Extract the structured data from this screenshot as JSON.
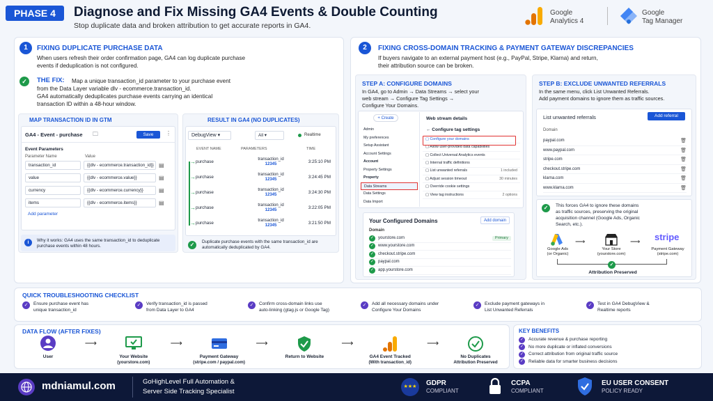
{
  "header": {
    "phase": "PHASE 4",
    "title": "Diagnose and Fix Missing GA4 Events & Double Counting",
    "subtitle": "Stop duplicate data and broken attribution to get accurate reports in GA4.",
    "ga_line1": "Google",
    "ga_line2": "Analytics 4",
    "gtm_line1": "Google",
    "gtm_line2": "Tag Manager"
  },
  "s1": {
    "num": "1",
    "title": "FIXING DUPLICATE PURCHASE DATA",
    "intro": "When users refresh their order confirmation page, GA4 can log duplicate purchase events if deduplication is not configured.",
    "fix_label": "THE FIX:",
    "fix_line1": "Map a unique transaction_id parameter to your purchase event",
    "fix_line2": "from the Data Layer variable dlv - ecommerce.transaction_id.",
    "fix_line3": "GA4 automatically deduplicates purchase events carrying an identical",
    "fix_line4": "transaction ID within a 48-hour window.",
    "gtm": {
      "heading": "MAP TRANSACTION ID IN GTM",
      "tag": "GA4 - Event - purchase",
      "save": "Save",
      "params_title": "Event Parameters",
      "col_name": "Parameter Name",
      "col_value": "Value",
      "rows": [
        {
          "name": "transaction_id",
          "value": "{{dlv - ecommerce.transaction_id}}"
        },
        {
          "name": "value",
          "value": "{{dlv - ecommerce.value}}"
        },
        {
          "name": "currency",
          "value": "{{dlv - ecommerce.currency}}"
        },
        {
          "name": "items",
          "value": "{{dlv - ecommerce.items}}"
        }
      ],
      "add": "Add parameter"
    },
    "why": "Why it works: GA4 uses the same transaction_id to deduplicate purchase events within 48 hours.",
    "result": {
      "heading": "RESULT IN GA4 (NO DUPLICATES)",
      "debug": "DebugView",
      "all": "All",
      "realtime": "Realtime",
      "col_event": "EVENT NAME",
      "col_params": "PARAMETERS",
      "col_time": "TIME",
      "rows": [
        {
          "event": "purchase",
          "param": "transaction_id",
          "val": "12345",
          "time": "3:25:10 PM"
        },
        {
          "event": "purchase",
          "param": "transaction_id",
          "val": "12345",
          "time": "3:24:45 PM"
        },
        {
          "event": "purchase",
          "param": "transaction_id",
          "val": "12345",
          "time": "3:24:30 PM"
        },
        {
          "event": "purchase",
          "param": "transaction_id",
          "val": "12345",
          "time": "3:22:05 PM"
        },
        {
          "event": "purchase",
          "param": "transaction_id",
          "val": "12345",
          "time": "3:21:50 PM"
        }
      ],
      "note": "Duplicate purchase events with the same transaction_id are automatically deduplicated by GA4."
    }
  },
  "s2": {
    "num": "2",
    "title": "FIXING CROSS-DOMAIN TRACKING & PAYMENT GATEWAY DISCREPANCIES",
    "intro1": "If buyers navigate to an external payment host (e.g., PayPal, Stripe, Klarna) and return,",
    "intro2": "their attribution source can be broken.",
    "stepA": {
      "title": "STEP A: CONFIGURE DOMAINS",
      "l1": "In GA4, go to Admin → Data Streams → select your",
      "l2": "web stream → Configure Tag Settings →",
      "l3": "Configure Your Domains.",
      "create": "+ Create",
      "nav": [
        "Admin",
        "My preferences",
        "Setup Assistant",
        "Account Settings",
        "Account",
        "Property Settings",
        "Property",
        "Data Streams",
        "Data Settings",
        "Data Import"
      ],
      "wsd": "Web stream details",
      "cts": "← Configure tag settings",
      "opts": [
        {
          "l": "Configure your domains",
          "r": ""
        },
        {
          "l": "Allow user-provided data capabilities",
          "r": ""
        },
        {
          "l": "Collect Universal Analytics events",
          "r": ""
        },
        {
          "l": "Internal traffic definitions",
          "r": ""
        },
        {
          "l": "List unwanted referrals",
          "r": "1 included"
        },
        {
          "l": "Adjust session timeout",
          "r": "30 minutes"
        },
        {
          "l": "Override cookie settings",
          "r": ""
        },
        {
          "l": "View tag instructions",
          "r": "2 options"
        }
      ],
      "domains_title": "Your Configured Domains",
      "add_domain": "Add domain",
      "domain_col": "Domain",
      "primary": "Primary",
      "domains": [
        "yourstore.com",
        "www.yourstore.com",
        "checkout.stripe.com",
        "paypal.com",
        "app.yourstore.com"
      ]
    },
    "stepB": {
      "title": "STEP B: EXCLUDE UNWANTED REFERRALS",
      "l1": "In the same menu, click List Unwanted Referrals.",
      "l2": "Add payment domains to ignore them as traffic sources.",
      "list_title": "List unwanted referrals",
      "add_ref": "Add referral",
      "col": "Domain",
      "refs": [
        "paypal.com",
        "www.paypal.com",
        "stripe.com",
        "checkout.stripe.com",
        "klarna.com",
        "www.klarna.com"
      ],
      "force1": "This forces GA4 to ignore these domains",
      "force2": "as traffic sources, preserving the original",
      "force3": "acquisition channel (Google Ads, Organic",
      "force4": "Search, etc.).",
      "ads": "Google Ads",
      "ads2": "(or Organic)",
      "store": "Your Store",
      "store2": "(yourstore.com)",
      "pg": "Payment Gateway",
      "pg2": "(stripe.com)",
      "stripe": "stripe",
      "attr": "Attribution Preserved"
    }
  },
  "checklist": {
    "title": "QUICK TROUBLESHOOTING CHECKLIST",
    "items": [
      {
        "a": "Ensure purchase event has",
        "b": "unique transaction_id"
      },
      {
        "a": "Verify transaction_id is passed",
        "b": "from Data Layer to GA4"
      },
      {
        "a": "Confirm cross-domain links use",
        "b": "auto-linking (gtag.js or Google Tag)"
      },
      {
        "a": "Add all necessary domains under",
        "b": "Configure Your Domains"
      },
      {
        "a": "Exclude payment gateways in",
        "b": "List Unwanted Referrals"
      },
      {
        "a": "Test in GA4 DebugView &",
        "b": "Realtime reports"
      }
    ]
  },
  "flow": {
    "title": "DATA FLOW (AFTER FIXES)",
    "steps": [
      {
        "a": "User",
        "b": ""
      },
      {
        "a": "Your Website",
        "b": "(yourstore.com)"
      },
      {
        "a": "Payment Gateway",
        "b": "(stripe.com / paypal.com)"
      },
      {
        "a": "Return to Website",
        "b": ""
      },
      {
        "a": "GA4 Event Tracked",
        "b": "(With transaction_id)"
      },
      {
        "a": "No Duplicates",
        "b": "Attribution Preserved"
      }
    ]
  },
  "benefits": {
    "title": "KEY BENEFITS",
    "items": [
      "Accurate revenue & purchase reporting",
      "No more duplicate or inflated conversions",
      "Correct attribution from original traffic source",
      "Reliable data for smarter business decisions"
    ]
  },
  "footer": {
    "site": "mdniamul.com",
    "tag1": "GoHighLevel Full Automation &",
    "tag2": "Server Side Tracking Specialist",
    "gdpr": "GDPR",
    "gdpr2": "COMPLIANT",
    "ccpa": "CCPA",
    "ccpa2": "COMPLIANT",
    "eu": "EU USER CONSENT",
    "eu2": "POLICY READY"
  }
}
